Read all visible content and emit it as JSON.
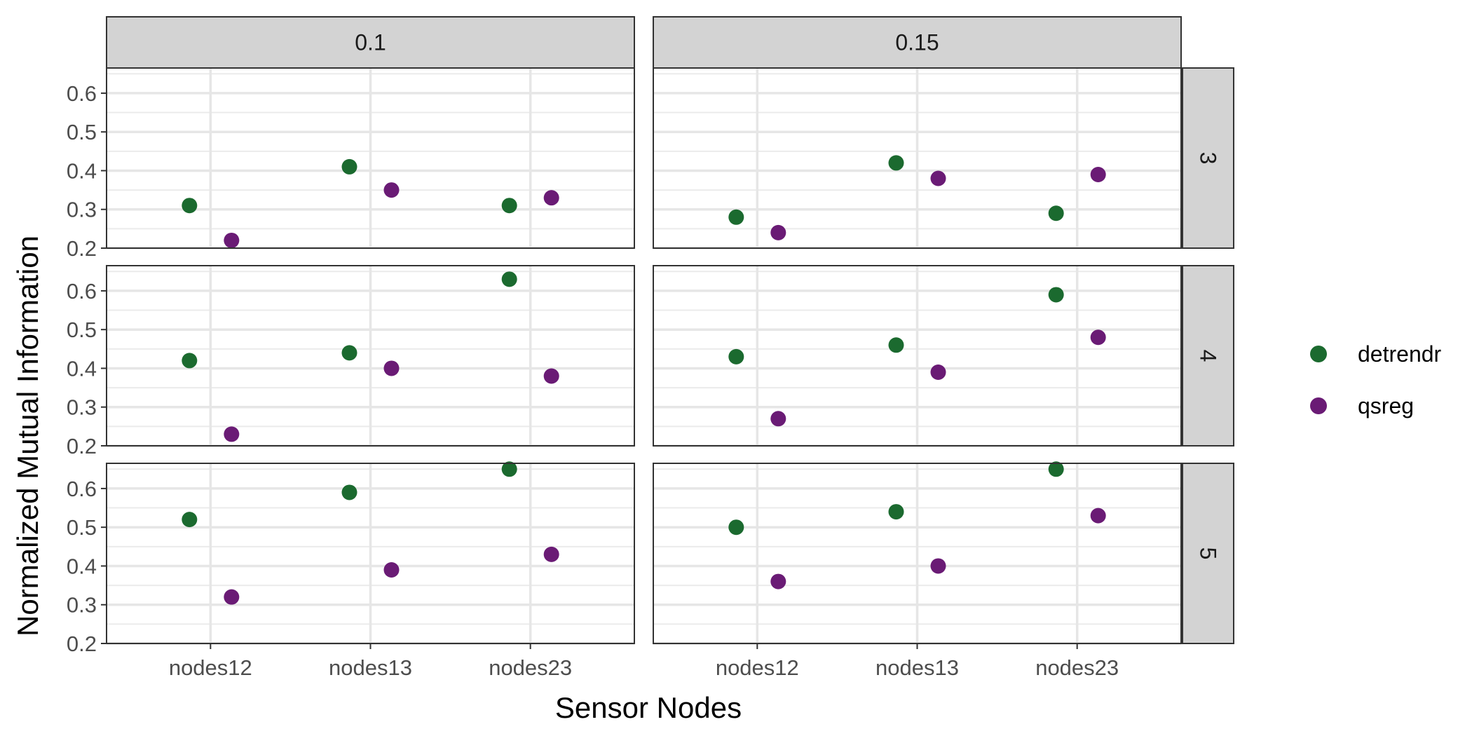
{
  "chart_data": {
    "type": "scatter",
    "xlabel": "Sensor Nodes",
    "ylabel": "Normalized Mutual Information",
    "categories": [
      "nodes12",
      "nodes13",
      "nodes23"
    ],
    "ylim": [
      0.2,
      0.665
    ],
    "yticks": [
      0.2,
      0.3,
      0.4,
      0.5,
      0.6
    ],
    "ytick_labels": [
      "0.2",
      "0.3",
      "0.4",
      "0.5",
      "0.6"
    ],
    "grid": true,
    "legend_position": "right",
    "facet_columns": [
      "0.1",
      "0.15"
    ],
    "facet_rows": [
      "3",
      "4",
      "5"
    ],
    "series": [
      {
        "name": "detrendr",
        "color": "#1b6a2f"
      },
      {
        "name": "qsreg",
        "color": "#6a1b75"
      }
    ],
    "panels": [
      {
        "col": "0.1",
        "row": "3",
        "values": {
          "detrendr": [
            0.31,
            0.41,
            0.31
          ],
          "qsreg": [
            0.22,
            0.35,
            0.33
          ]
        }
      },
      {
        "col": "0.15",
        "row": "3",
        "values": {
          "detrendr": [
            0.28,
            0.42,
            0.29
          ],
          "qsreg": [
            0.24,
            0.38,
            0.39
          ]
        }
      },
      {
        "col": "0.1",
        "row": "4",
        "values": {
          "detrendr": [
            0.42,
            0.44,
            0.63
          ],
          "qsreg": [
            0.23,
            0.4,
            0.38
          ]
        }
      },
      {
        "col": "0.15",
        "row": "4",
        "values": {
          "detrendr": [
            0.43,
            0.46,
            0.59
          ],
          "qsreg": [
            0.27,
            0.39,
            0.48
          ]
        }
      },
      {
        "col": "0.1",
        "row": "5",
        "values": {
          "detrendr": [
            0.52,
            0.59,
            0.65
          ],
          "qsreg": [
            0.32,
            0.39,
            0.43
          ]
        }
      },
      {
        "col": "0.15",
        "row": "5",
        "values": {
          "detrendr": [
            0.5,
            0.54,
            0.65
          ],
          "qsreg": [
            0.36,
            0.4,
            0.53
          ]
        }
      }
    ]
  }
}
